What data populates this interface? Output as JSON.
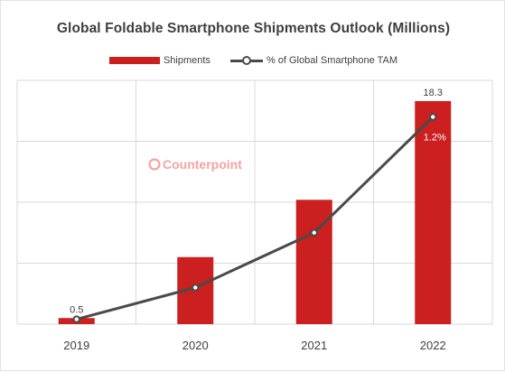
{
  "chart_data": {
    "type": "bar",
    "title": "Global Foldable Smartphone Shipments Outlook (Millions)",
    "xlabel": "",
    "ylabel": "",
    "categories": [
      "2019",
      "2020",
      "2021",
      "2022"
    ],
    "ylim": [
      0,
      20
    ],
    "grid": true,
    "legend_position": "top",
    "series": [
      {
        "name": "Shipments",
        "kind": "bar",
        "color": "#cc1f1f",
        "values": [
          0.5,
          5.5,
          10.2,
          18.3
        ],
        "data_labels": [
          "0.5",
          null,
          null,
          "18.3"
        ]
      },
      {
        "name": "% of Global Smartphone TAM",
        "kind": "line",
        "color": "#4a4a4a",
        "values_on_bar_axis": [
          0.4,
          3.0,
          7.5,
          17.0
        ],
        "data_labels": [
          null,
          null,
          null,
          "1.2%"
        ]
      }
    ]
  },
  "watermark": {
    "text": "Counterpoint",
    "color": "#f4a3a3"
  },
  "colors": {
    "bar": "#cc1f1f",
    "line": "#4a4a4a",
    "grid": "#d9d9d9",
    "text": "#404040"
  }
}
